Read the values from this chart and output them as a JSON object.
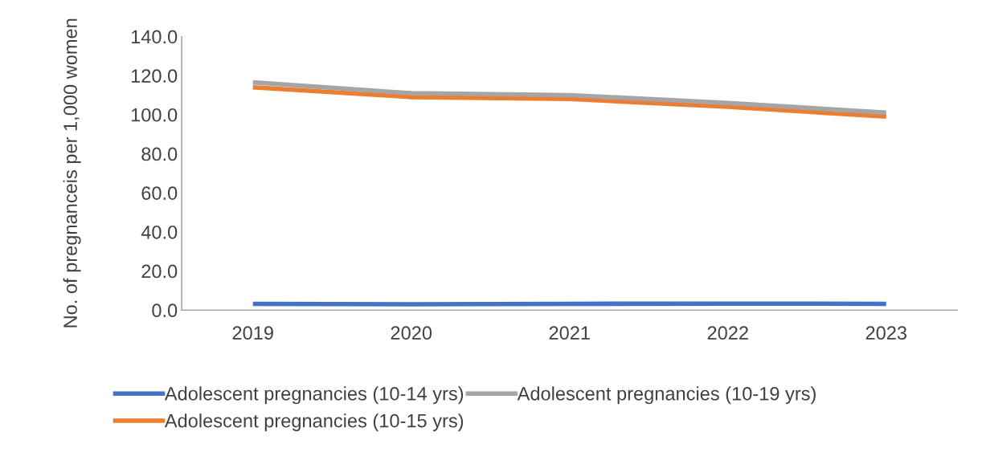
{
  "chart_data": {
    "type": "line",
    "ylabel": "No. of pregnanceis per 1,000 women",
    "categories": [
      "2019",
      "2020",
      "2021",
      "2022",
      "2023"
    ],
    "series": [
      {
        "name": "Adolescent pregnancies (10-14 yrs)",
        "color": "#4472c4",
        "values": [
          3.2,
          3.0,
          3.2,
          3.3,
          3.2
        ]
      },
      {
        "name": "Adolescent pregnancies (10-15 yrs)",
        "color": "#ed7d31",
        "values": [
          114,
          109,
          108,
          104,
          99
        ]
      },
      {
        "name": "Adolescent pregnancies (10-19 yrs)",
        "color": "#a5a5a5",
        "values": [
          116.5,
          111,
          110,
          106,
          101
        ]
      }
    ],
    "ylim": [
      0,
      140
    ],
    "yticks": [
      {
        "value": 0,
        "label": "0.0"
      },
      {
        "value": 20,
        "label": "20.0"
      },
      {
        "value": 40,
        "label": "40.0"
      },
      {
        "value": 60,
        "label": "60.0"
      },
      {
        "value": 80,
        "label": "80.0"
      },
      {
        "value": 100,
        "label": "100.0"
      },
      {
        "value": 120,
        "label": "120.0"
      },
      {
        "value": 140,
        "label": "140.0"
      }
    ],
    "grid": false,
    "legend": "bottom",
    "marker": "none",
    "line_style": "solid"
  }
}
